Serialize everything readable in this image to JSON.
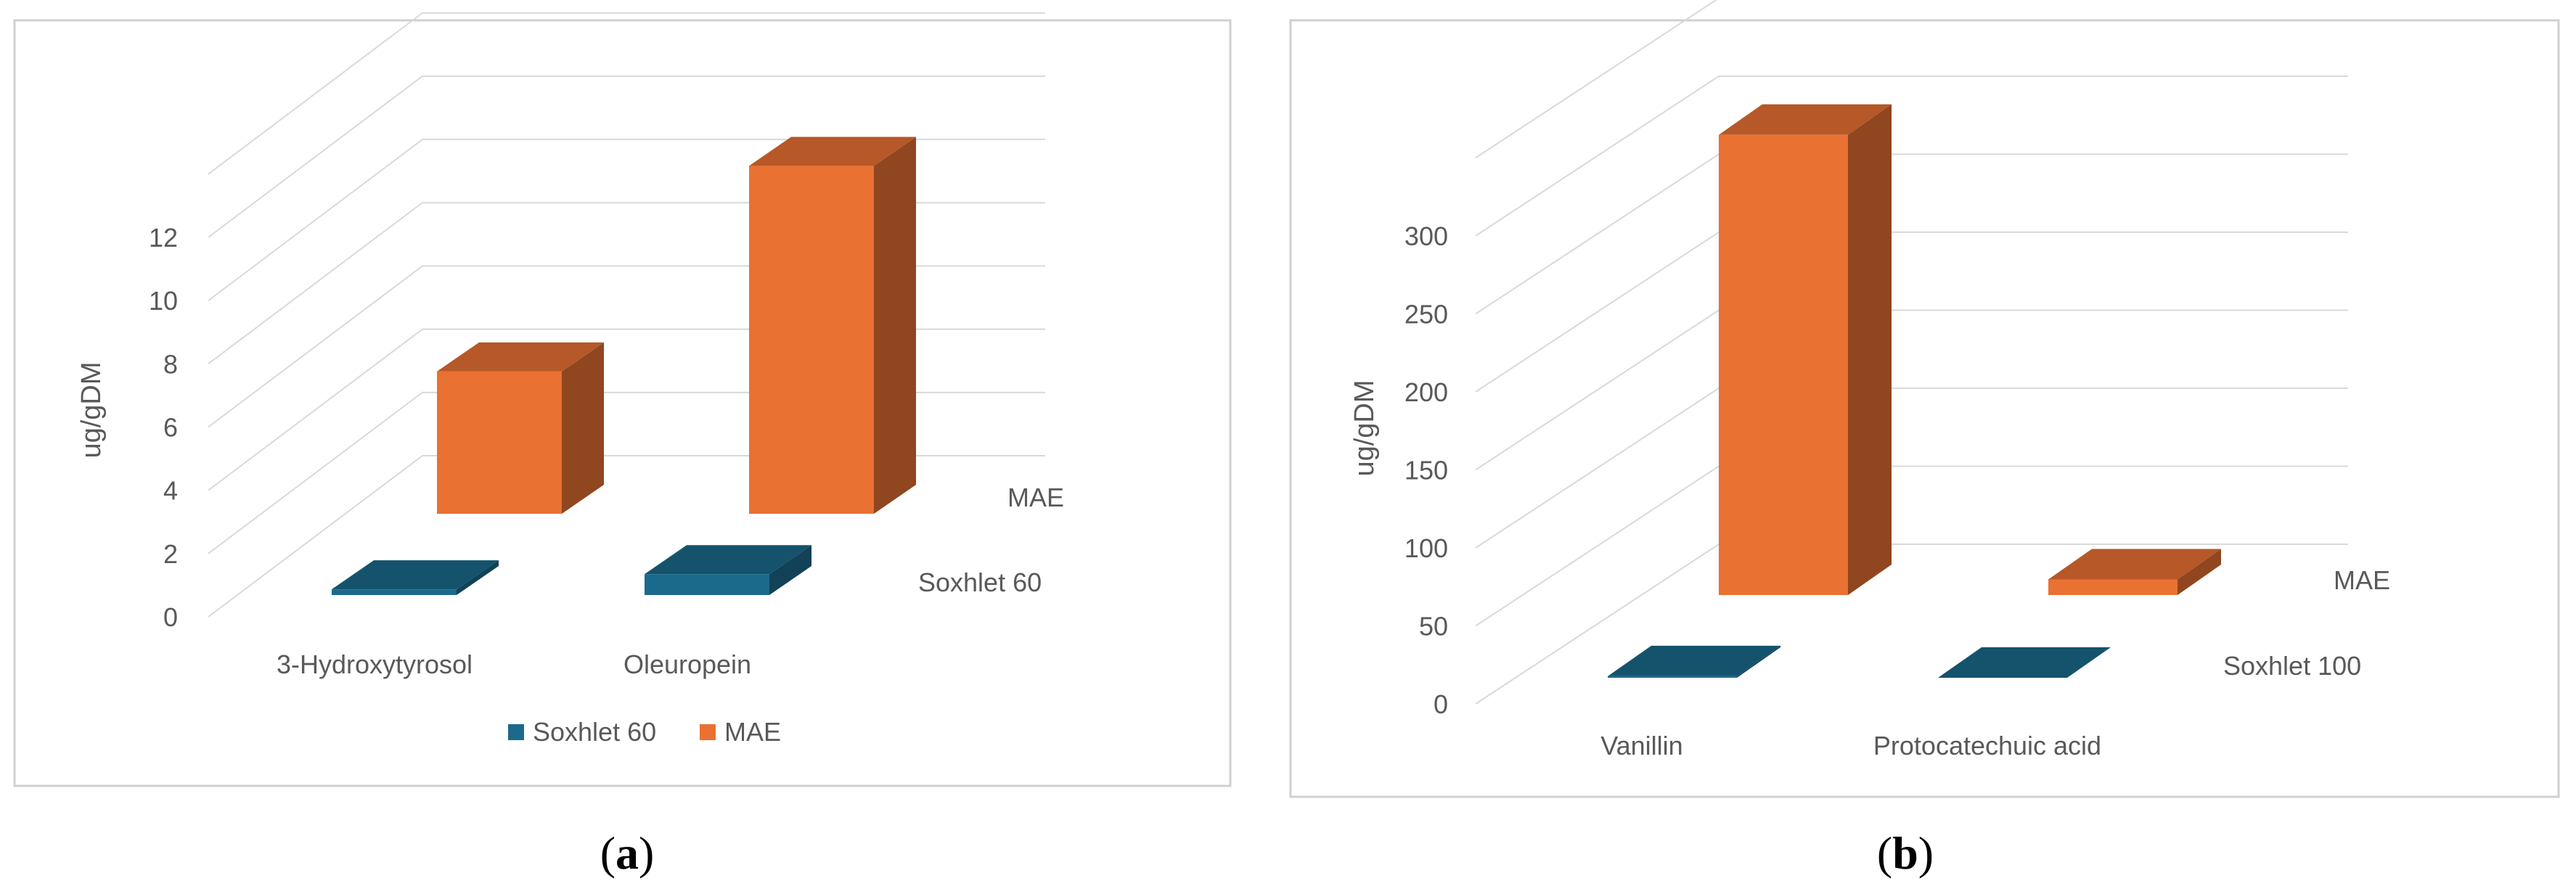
{
  "chart_data": [
    {
      "type": "bar",
      "variant": "3d-column",
      "panel_label": "a",
      "ylabel": "ug/gDM",
      "yticks": [
        0,
        2,
        4,
        6,
        8,
        10,
        12
      ],
      "ylim": [
        0,
        12
      ],
      "categories": [
        "3-Hydroxytyrosol",
        "Oleuropein"
      ],
      "series": [
        {
          "name": "Soxhlet 60",
          "values": [
            0.3,
            1.1
          ],
          "color": "#1b6a8c"
        },
        {
          "name": "MAE",
          "values": [
            4.5,
            11.0
          ],
          "color": "#e97132"
        }
      ],
      "legend": {
        "position": "bottom",
        "items": [
          "Soxhlet 60",
          "MAE"
        ]
      },
      "grid": true
    },
    {
      "type": "bar",
      "variant": "3d-column",
      "panel_label": "b",
      "ylabel": "ug/gDM",
      "yticks": [
        0,
        50,
        100,
        150,
        200,
        250,
        300
      ],
      "ylim": [
        0,
        300
      ],
      "categories": [
        "Vanillin",
        "Protocatechuic acid"
      ],
      "series": [
        {
          "name": "Soxhlet 100",
          "values": [
            1,
            0
          ],
          "color": "#1b6a8c"
        },
        {
          "name": "MAE",
          "values": [
            295,
            10
          ],
          "color": "#e97132"
        }
      ],
      "legend": {
        "position": "none"
      },
      "grid": true
    }
  ]
}
